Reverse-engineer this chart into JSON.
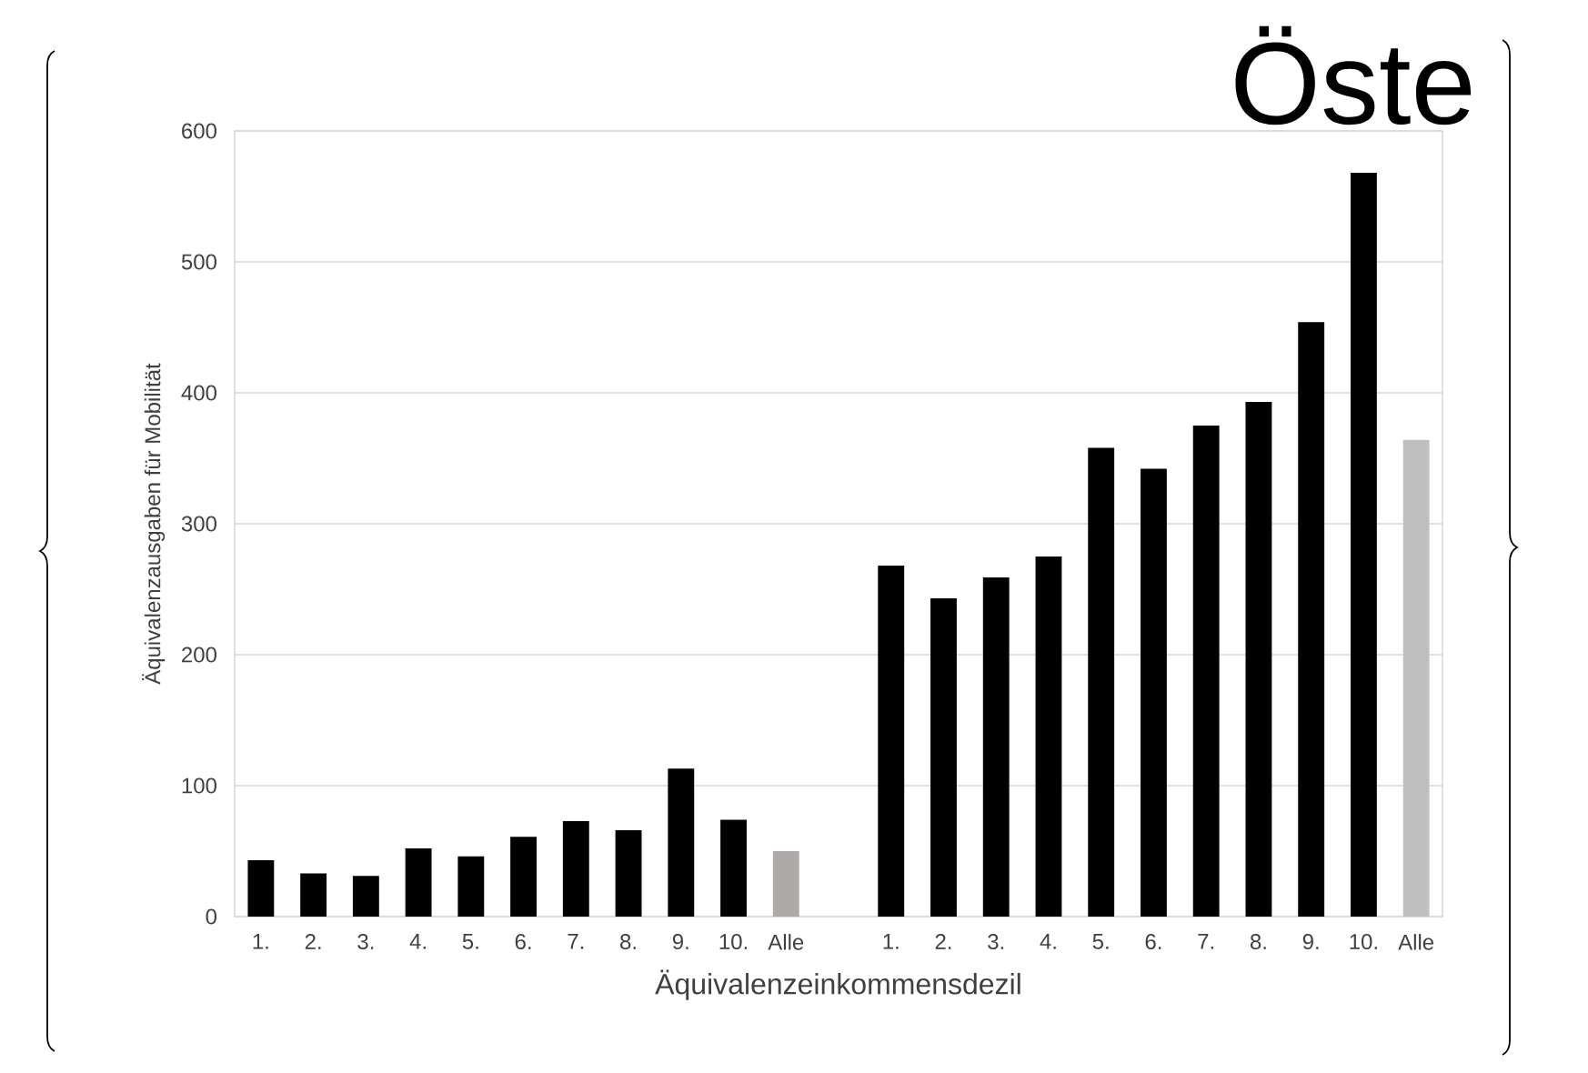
{
  "chart_data": {
    "type": "bar",
    "xlabel": "Äquivalenzeinkommensdezil",
    "ylabel": "Äquivalenzausgaben für Mobilität",
    "annotations": [
      "Öste"
    ],
    "categories": [
      "1.",
      "2.",
      "3.",
      "4.",
      "5.",
      "6.",
      "7.",
      "8.",
      "9.",
      "10.",
      "Alle",
      null,
      "1.",
      "2.",
      "3.",
      "4.",
      "5.",
      "6.",
      "7.",
      "8.",
      "9.",
      "10.",
      "Alle"
    ],
    "values": [
      43,
      33,
      31,
      52,
      46,
      61,
      73,
      66,
      113,
      74,
      50,
      null,
      268,
      243,
      259,
      275,
      358,
      342,
      375,
      393,
      454,
      568,
      364
    ],
    "colors": [
      "#000000",
      "#000000",
      "#000000",
      "#000000",
      "#000000",
      "#000000",
      "#000000",
      "#000000",
      "#000000",
      "#000000",
      "#aeaaaa",
      null,
      "#000000",
      "#000000",
      "#000000",
      "#000000",
      "#000000",
      "#000000",
      "#000000",
      "#000000",
      "#000000",
      "#000000",
      "#bfbfbf"
    ],
    "ylim": [
      0,
      600
    ],
    "yticks": [
      0,
      100,
      200,
      300,
      400,
      500,
      600
    ],
    "grid": "y"
  }
}
